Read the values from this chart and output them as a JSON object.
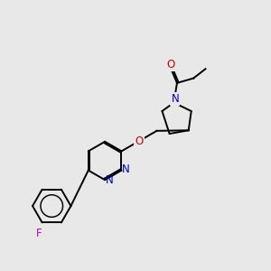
{
  "background_color": "#e8e8e8",
  "bond_color": "#000000",
  "nitrogen_color": "#0000cc",
  "oxygen_color": "#cc0000",
  "fluorine_color": "#bb00bb",
  "fig_width": 3.0,
  "fig_height": 3.0,
  "dpi": 100,
  "lw": 1.4,
  "fs": 8.5,
  "xlim": [
    0,
    10
  ],
  "ylim": [
    0,
    10
  ]
}
